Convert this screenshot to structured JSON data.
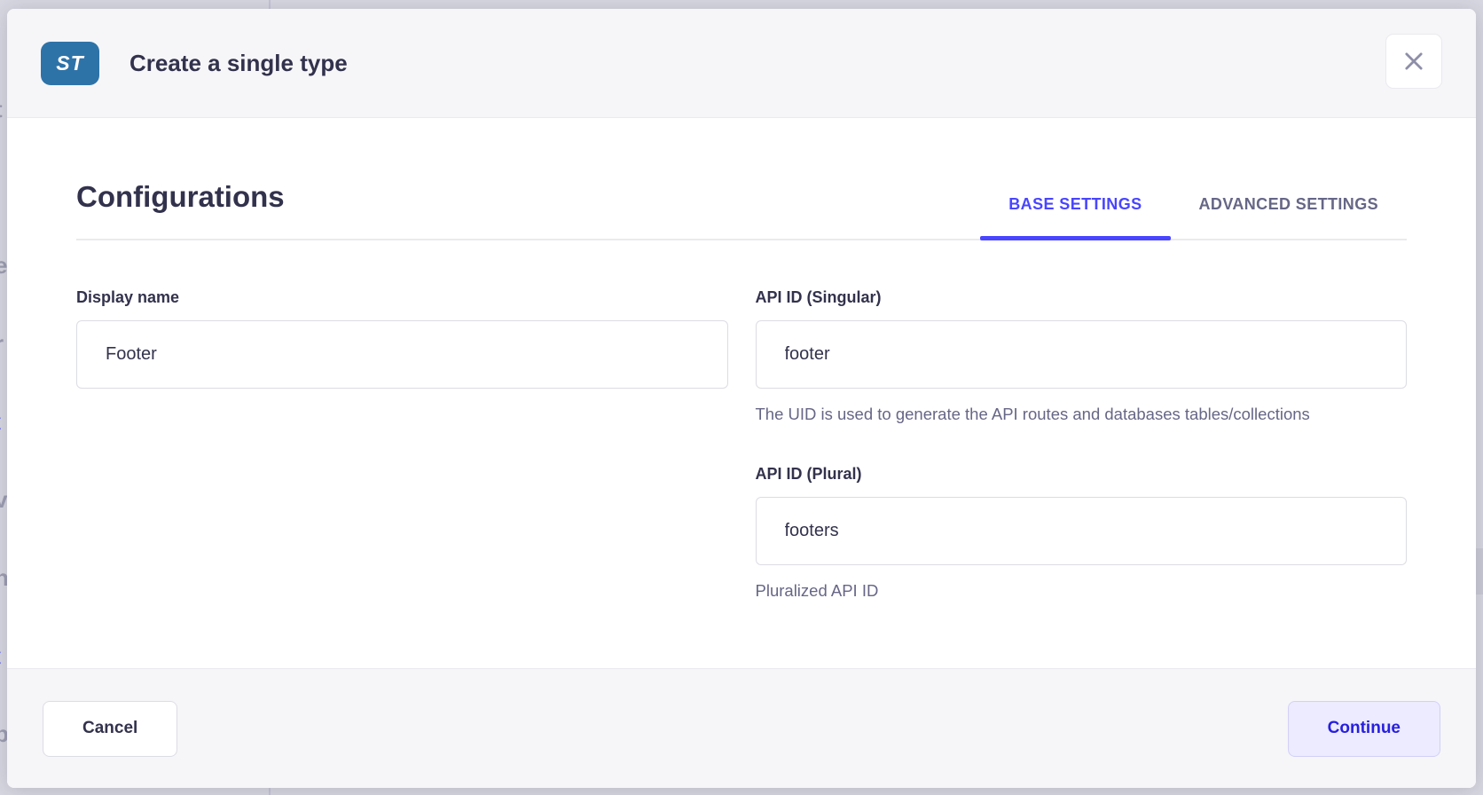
{
  "modal": {
    "header": {
      "badge": "ST",
      "title": "Create a single type"
    },
    "icons": {
      "close": "close-icon"
    },
    "section": {
      "heading": "Configurations",
      "tabs": [
        {
          "label": "BASE SETTINGS",
          "active": true
        },
        {
          "label": "ADVANCED SETTINGS",
          "active": false
        }
      ]
    },
    "fields": {
      "display_name": {
        "label": "Display name",
        "value": "Footer"
      },
      "api_id_singular": {
        "label": "API ID (Singular)",
        "value": "footer",
        "hint": "The UID is used to generate the API routes and databases tables/collections"
      },
      "api_id_plural": {
        "label": "API ID (Plural)",
        "value": "footers",
        "hint": "Pluralized API ID"
      }
    },
    "footer": {
      "cancel_label": "Cancel",
      "continue_label": "Continue"
    }
  },
  "colors": {
    "accent": "#4945ff",
    "accent_dark": "#271fe0",
    "badge_blue": "#2e73a8",
    "text_dark": "#32324d",
    "text_gray": "#666687",
    "surface_gray": "#f6f6f9",
    "border_light": "#eaeaef",
    "border_input": "#dcdce4",
    "backdrop": "#d8d8e2"
  },
  "backdrop_fragments": [
    {
      "ch": "t",
      "blue": false
    },
    {
      "ch": "i",
      "blue": false
    },
    {
      "ch": "e",
      "blue": false
    },
    {
      "ch": "r",
      "blue": false
    },
    {
      "ch": "t",
      "blue": true
    },
    {
      "ch": "v",
      "blue": false
    },
    {
      "ch": "n",
      "blue": false
    },
    {
      "ch": "t",
      "blue": true
    },
    {
      "ch": "b",
      "blue": false
    }
  ]
}
